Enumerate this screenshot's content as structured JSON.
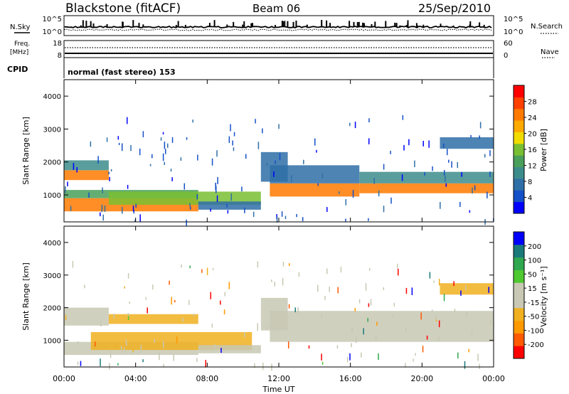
{
  "header": {
    "station": "Blackstone (fitACF)",
    "beam": "Beam 06",
    "date": "25/Sep/2010"
  },
  "summary": {
    "left_labels": {
      "nsky": "N.Sky",
      "freq": "Freq.",
      "freq_unit": "[MHz]",
      "cpid": "CPID"
    },
    "right_labels": {
      "nsearch": "N.Search",
      "nave": "Nave"
    },
    "nsky_ticks": [
      "10^5",
      "10^0"
    ],
    "nsearch_ticks": [
      "10^5",
      "10^0"
    ],
    "freq_ticks": [
      "18",
      "8"
    ],
    "nave_ticks": [
      "60",
      "0"
    ],
    "cpid_text": "normal (fast stereo) 153"
  },
  "colors": {
    "power": [
      "#0000ff",
      "#1450c8",
      "#2f6fa7",
      "#3d8c8c",
      "#4aa05a",
      "#79bf33",
      "#f2dc00",
      "#ffaa00",
      "#ff7a00",
      "#ff4000",
      "#ff0000"
    ],
    "velocity": [
      "#ff0000",
      "#ff5a00",
      "#ff9900",
      "#f0b020",
      "#c8c8b4",
      "#c8c8b4",
      "#4fc930",
      "#2fa84f",
      "#1a7a7a",
      "#0000ff"
    ]
  },
  "chart_data": [
    {
      "type": "heatmap",
      "name": "power",
      "ylabel": "Slant Range [km]",
      "yticks": [
        "1000",
        "2000",
        "3000",
        "4000"
      ],
      "ylim": [
        180,
        4500
      ],
      "xlim": [
        0,
        24
      ],
      "colorbar_label": "Power [dB]",
      "colorbar_ticks": [
        "4",
        "8",
        "12",
        "16",
        "20",
        "24",
        "28"
      ],
      "colorbar_range": [
        0,
        32
      ],
      "bands": [
        {
          "t0": 0.0,
          "t1": 2.5,
          "r0": 1450,
          "r1": 1750,
          "value": 24
        },
        {
          "t0": 0.0,
          "t1": 2.5,
          "r0": 1750,
          "r1": 2050,
          "value": 10
        },
        {
          "t0": 0.0,
          "t1": 7.5,
          "r0": 500,
          "r1": 900,
          "value": 26
        },
        {
          "t0": 0.0,
          "t1": 7.5,
          "r0": 900,
          "r1": 1150,
          "value": 14
        },
        {
          "t0": 2.5,
          "t1": 11.0,
          "r0": 700,
          "r1": 1100,
          "value": 16
        },
        {
          "t0": 7.5,
          "t1": 11.0,
          "r0": 550,
          "r1": 800,
          "value": 8
        },
        {
          "t0": 11.0,
          "t1": 12.5,
          "r0": 1400,
          "r1": 2300,
          "value": 8
        },
        {
          "t0": 11.5,
          "t1": 16.5,
          "r0": 950,
          "r1": 1350,
          "value": 24
        },
        {
          "t0": 11.5,
          "t1": 16.5,
          "r0": 1350,
          "r1": 1900,
          "value": 8
        },
        {
          "t0": 16.5,
          "t1": 24.0,
          "r0": 1050,
          "r1": 1350,
          "value": 26
        },
        {
          "t0": 16.5,
          "t1": 24.0,
          "r0": 1350,
          "r1": 1700,
          "value": 10
        },
        {
          "t0": 21.0,
          "t1": 24.0,
          "r0": 2400,
          "r1": 2750,
          "value": 6
        }
      ]
    },
    {
      "type": "heatmap",
      "name": "velocity",
      "ylabel": "Slant Range [km]",
      "yticks": [
        "1000",
        "2000",
        "3000",
        "4000"
      ],
      "ylim": [
        180,
        4500
      ],
      "xlim": [
        0,
        24
      ],
      "xlabel": "Time UT",
      "xticks": [
        "00:00",
        "04:00",
        "08:00",
        "12:00",
        "16:00",
        "20:00",
        "00:00"
      ],
      "colorbar_label": "Velocity [m s⁻¹]",
      "colorbar_ticks": [
        "-200",
        "-100",
        "-50",
        "-15",
        "15",
        "50",
        "100",
        "200"
      ],
      "colorbar_range": [
        -250,
        250
      ],
      "bands": [
        {
          "t0": 0.0,
          "t1": 2.5,
          "r0": 1450,
          "r1": 2000,
          "value": 0
        },
        {
          "t0": 0.0,
          "t1": 7.5,
          "r0": 550,
          "r1": 950,
          "value": 0
        },
        {
          "t0": 1.5,
          "t1": 10.5,
          "r0": 700,
          "r1": 1250,
          "value": -60
        },
        {
          "t0": 2.5,
          "t1": 7.5,
          "r0": 1500,
          "r1": 1800,
          "value": -60
        },
        {
          "t0": 7.5,
          "t1": 11.0,
          "r0": 600,
          "r1": 850,
          "value": 0
        },
        {
          "t0": 11.0,
          "t1": 12.5,
          "r0": 1300,
          "r1": 2300,
          "value": 0
        },
        {
          "t0": 11.5,
          "t1": 24.0,
          "r0": 950,
          "r1": 1900,
          "value": 0
        },
        {
          "t0": 21.0,
          "t1": 24.0,
          "r0": 2400,
          "r1": 2750,
          "value": -60
        }
      ]
    }
  ]
}
